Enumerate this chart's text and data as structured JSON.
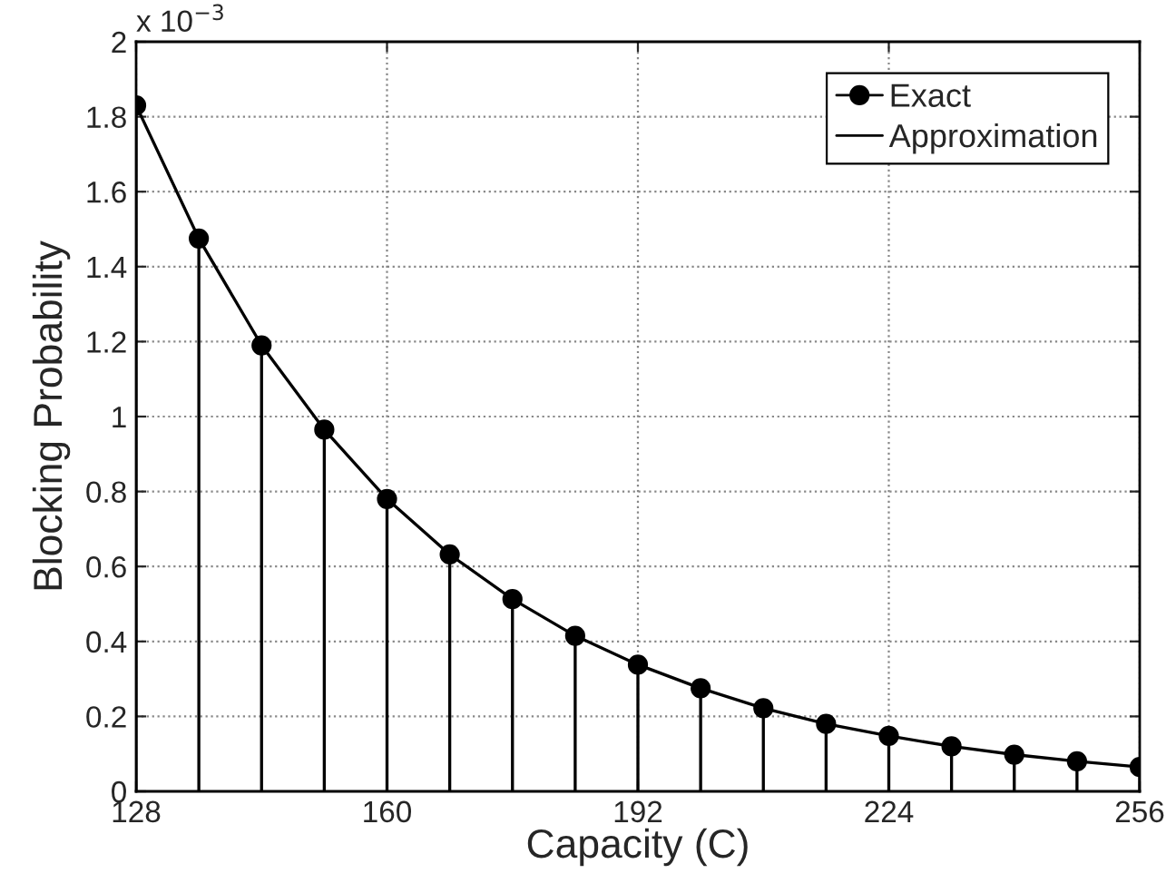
{
  "chart_data": {
    "type": "line",
    "xlabel": "Capacity (C)",
    "ylabel": "Blocking Probability",
    "annotations": [
      "x 10$^{−3}$"
    ],
    "x": [
      128,
      136,
      144,
      152,
      160,
      168,
      176,
      184,
      192,
      200,
      208,
      216,
      224,
      232,
      240,
      248,
      256
    ],
    "series": [
      {
        "name": "Exact",
        "type": "lollipop",
        "marker": "circle",
        "color": "#000000",
        "values": [
          1.83,
          1.475,
          1.19,
          0.965,
          0.78,
          0.632,
          0.513,
          0.415,
          0.338,
          0.275,
          0.222,
          0.18,
          0.148,
          0.12,
          0.098,
          0.08,
          0.065
        ]
      },
      {
        "name": "Approximation",
        "line_style": "solid",
        "color": "#000000",
        "values": [
          1.83,
          1.475,
          1.19,
          0.965,
          0.78,
          0.632,
          0.513,
          0.415,
          0.338,
          0.275,
          0.222,
          0.18,
          0.148,
          0.12,
          0.098,
          0.08,
          0.065
        ]
      }
    ],
    "xlim": [
      128,
      256
    ],
    "xticks": [
      128,
      160,
      192,
      224,
      256
    ],
    "ylim": [
      0,
      2
    ],
    "yticks": [
      0,
      0.2,
      0.4,
      0.6,
      0.8,
      1,
      1.2,
      1.4,
      1.6,
      1.8,
      2
    ],
    "grid": true,
    "legend": "top right"
  }
}
